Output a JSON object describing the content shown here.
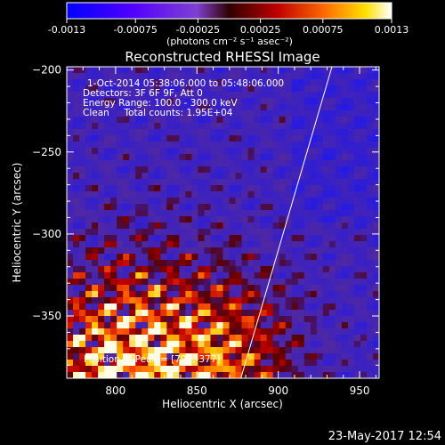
{
  "colorbar": {
    "tick_labels": [
      "-0.0013",
      "-0.00075",
      "-0.00025",
      "0.00025",
      "0.00075",
      "0.0013"
    ],
    "tick_values": [
      -0.0013,
      -0.00075,
      -0.00025,
      0.00025,
      0.00075,
      0.0013
    ],
    "range": [
      -0.0013,
      0.0013
    ],
    "unit_label": "(photons cm⁻² s⁻¹ asec⁻²)"
  },
  "chart_data": {
    "type": "heatmap",
    "title": "Reconstructed RHESSI Image",
    "xlabel": "Heliocentric X (arcsec)",
    "ylabel": "Heliocentric Y (arcsec)",
    "xlim": [
      770,
      962
    ],
    "ylim": [
      -388,
      -198
    ],
    "x_ticks": [
      800,
      850,
      900,
      950
    ],
    "y_ticks": [
      -200,
      -250,
      -300,
      -350
    ],
    "x_tick_labels": [
      "800",
      "850",
      "900",
      "950"
    ],
    "y_tick_labels": [
      "−200",
      "−250",
      "−300",
      "−350"
    ],
    "grid": false,
    "limb_line": {
      "x": [
        877,
        933
      ],
      "y": [
        -388,
        -198
      ]
    },
    "annotations": [
      "1-Oct-2014 05:38:06.000 to 05:48:06.000",
      "Detectors: 3F 6F 9F, Att 0",
      "Energy Range: 100.0 - 300.0 keV",
      "Clean     Total counts: 1.95E+04",
      "Position of Peak = [797,-377]"
    ],
    "colors": [
      "#0000ff",
      "#8000ff",
      "#800000",
      "#ff0000",
      "#ff8000",
      "#ffff00",
      "#ffffff"
    ]
  },
  "timestamp": "23-May-2017 12:54"
}
